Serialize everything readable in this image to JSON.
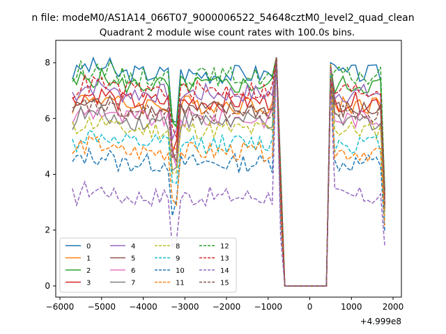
{
  "chart_data": {
    "type": "line",
    "suptitle": "n file: modeM0/AS1A14_066T07_9000006522_54648cztM0_level2_quad_clean",
    "title": "Quadrant 2 module wise count rates with 100.0s bins.",
    "xlabel": "",
    "ylabel": "",
    "x_offset_label": "+4.999e8",
    "xlim": [
      -6100,
      2200
    ],
    "ylim": [
      -0.4,
      8.8
    ],
    "xticks": [
      -6000,
      -5000,
      -4000,
      -3000,
      -2000,
      -1000,
      0,
      1000,
      2000
    ],
    "xtick_labels": [
      "−6000",
      "−5000",
      "−4000",
      "−3000",
      "−2000",
      "−1000",
      "0",
      "1000",
      "2000"
    ],
    "yticks": [
      0,
      2,
      4,
      6,
      8
    ],
    "ytick_labels": [
      "0",
      "2",
      "4",
      "6",
      "8"
    ],
    "legend": {
      "placement": "lower-left",
      "ncol": 4
    },
    "gap": {
      "start": -600,
      "end": 400
    },
    "series": [
      {
        "name": "0",
        "color": "#1f77b4",
        "style": "solid",
        "base": 7.6
      },
      {
        "name": "1",
        "color": "#ff7f0e",
        "style": "solid",
        "base": 6.5
      },
      {
        "name": "2",
        "color": "#2ca02c",
        "style": "solid",
        "base": 7.2
      },
      {
        "name": "3",
        "color": "#d62728",
        "style": "solid",
        "base": 6.6
      },
      {
        "name": "4",
        "color": "#9467bd",
        "style": "solid",
        "base": 6.9
      },
      {
        "name": "5",
        "color": "#8c564b",
        "style": "solid",
        "base": 6.3
      },
      {
        "name": "6",
        "color": "#e377c2",
        "style": "solid",
        "base": 6.0
      },
      {
        "name": "7",
        "color": "#7f7f7f",
        "style": "solid",
        "base": 5.9
      },
      {
        "name": "8",
        "color": "#bcbd22",
        "style": "dashed",
        "base": 5.6
      },
      {
        "name": "9",
        "color": "#17becf",
        "style": "dashed",
        "base": 5.1
      },
      {
        "name": "10",
        "color": "#1f77b4",
        "style": "dashed",
        "base": 4.4
      },
      {
        "name": "11",
        "color": "#ff7f0e",
        "style": "dashed",
        "base": 4.8
      },
      {
        "name": "12",
        "color": "#2ca02c",
        "style": "dashed",
        "base": 7.5
      },
      {
        "name": "13",
        "color": "#d62728",
        "style": "dashed",
        "base": 7.0
      },
      {
        "name": "14",
        "color": "#9467bd",
        "style": "dashed",
        "base": 3.2
      },
      {
        "name": "15",
        "color": "#8c564b",
        "style": "dashed",
        "base": 6.2
      }
    ]
  }
}
